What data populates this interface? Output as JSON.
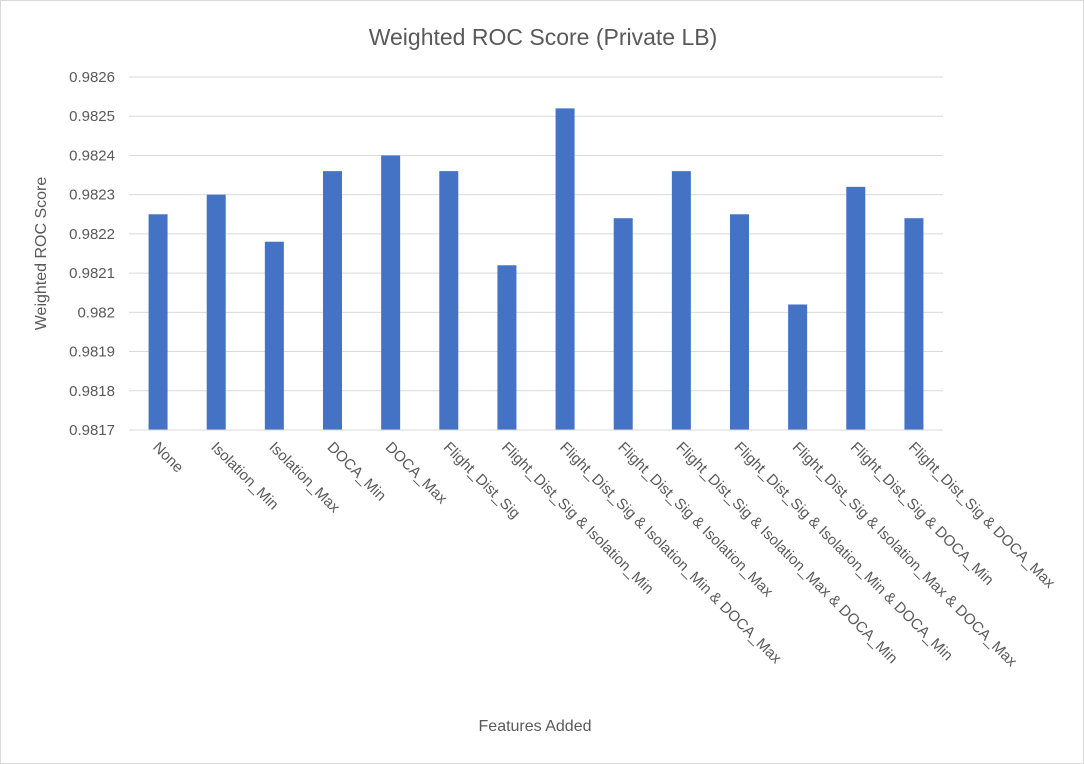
{
  "chart_data": {
    "type": "bar",
    "title": "Weighted ROC Score (Private LB)",
    "xlabel": "Features Added",
    "ylabel": "Weighted ROC Score",
    "ylim": [
      0.9817,
      0.9826
    ],
    "yticks": [
      "0.9817",
      "0.9818",
      "0.9819",
      "0.982",
      "0.9821",
      "0.9822",
      "0.9823",
      "0.9824",
      "0.9825",
      "0.9826"
    ],
    "grid": true,
    "legend": "none",
    "bar_color": "#4472c4",
    "categories": [
      "None",
      "Isolation_Min",
      "Isolation_Max",
      "DOCA_Min",
      "DOCA_Max",
      "Flight_Dist_Sig",
      "Flight_Dist_Sig & Isolation_Min",
      "Flight_Dist_Sig & Isolation_Min & DOCA_Max",
      "Flight_Dist_Sig & Isolation_Max",
      "Flight_Dist_Sig & Isolation_Max & DOCA_Min",
      "Flight_Dist_Sig & Isolation_Min & DOCA_Min",
      "Flight_Dist_Sig & Isolation_Max & DOCA_Max",
      "Flight_Dist_Sig & DOCA_Min",
      "Flight_Dist_Sig & DOCA_Max"
    ],
    "values": [
      0.98225,
      0.9823,
      0.98218,
      0.98236,
      0.9824,
      0.98236,
      0.98212,
      0.98252,
      0.98224,
      0.98236,
      0.98225,
      0.98202,
      0.98232,
      0.98224
    ]
  }
}
